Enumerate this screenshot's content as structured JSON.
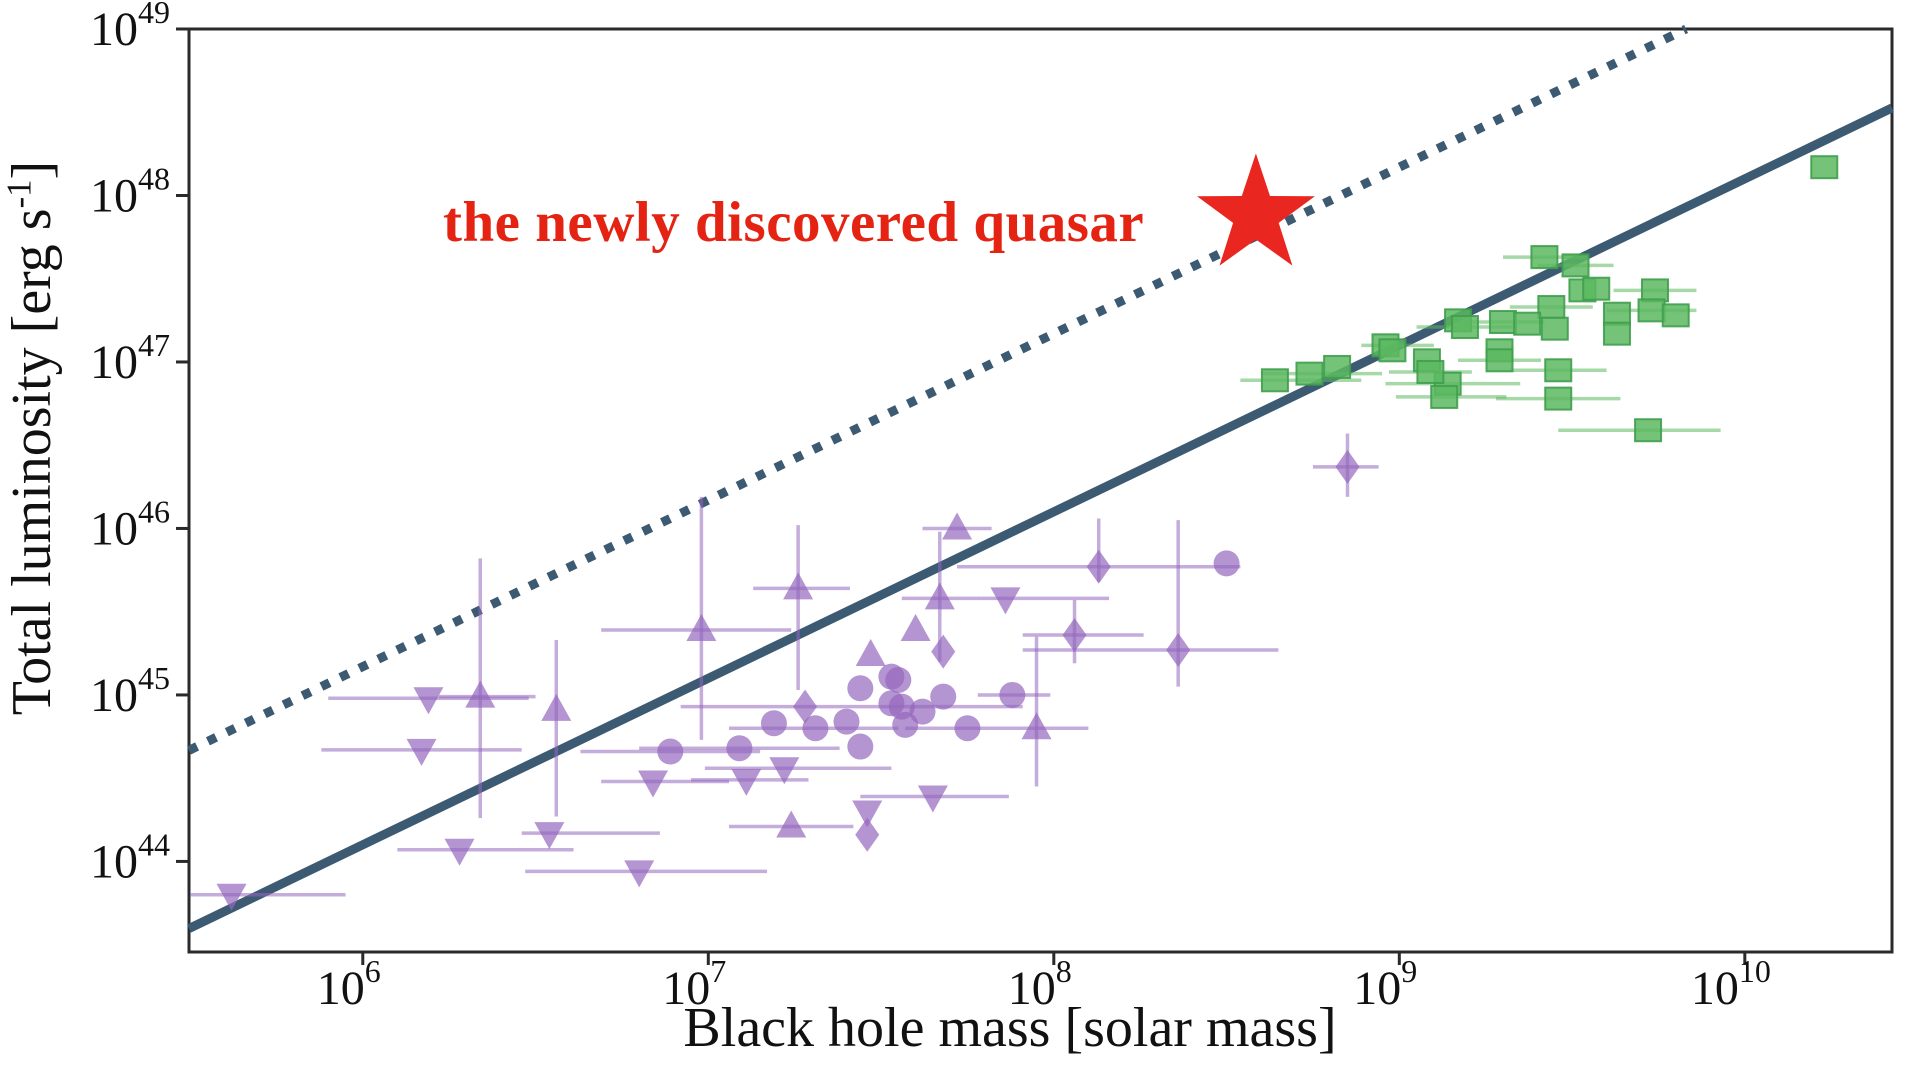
{
  "chart_data": {
    "type": "scatter",
    "title": "",
    "xlabel": "Black hole mass [solar mass]",
    "ylabel_pre": "Total luminosity [erg s",
    "ylabel_sup": "-1",
    "ylabel_post": "]",
    "annotation_text": "the newly discovered quasar",
    "x_axis": {
      "scale": "log",
      "range_exp": [
        5.497,
        10.426
      ],
      "tick_exponents": [
        6,
        7,
        8,
        9,
        10
      ],
      "tick_base": "10"
    },
    "y_axis": {
      "scale": "log",
      "range_exp": [
        43.456,
        49.0
      ],
      "tick_exponents": [
        49,
        48,
        47,
        46,
        45,
        44
      ],
      "tick_base": "10"
    },
    "grid": false,
    "legend": "none",
    "colors": {
      "purple_series": "#9467bd",
      "green_series": "#5cb860",
      "green_edge": "#3f9e4d",
      "line": "#3d5a73",
      "star": "#e9261f",
      "annotation": "#e42313",
      "axis": "#2a2a2a"
    },
    "lines": [
      {
        "name": "upper-dotted-relation",
        "style": "dotted",
        "slope": 1,
        "intercept": 39.17
      },
      {
        "name": "lower-solid-relation",
        "style": "solid",
        "slope": 1,
        "intercept": 38.1
      }
    ],
    "star_point": {
      "name": "newly-discovered-quasar",
      "logM": 8.585,
      "logL": 47.88
    },
    "series": [
      {
        "name": "agn-purple",
        "color": "#9467bd",
        "points": [
          {
            "m": 5.62,
            "l": 43.8,
            "mk": "triangle-down",
            "xe": [
              5.5,
              5.95
            ]
          },
          {
            "m": 6.19,
            "l": 44.98,
            "mk": "triangle-down",
            "xe": [
              5.9,
              6.48
            ]
          },
          {
            "m": 6.17,
            "l": 44.67,
            "mk": "triangle-down",
            "xe": [
              5.88,
              6.46
            ]
          },
          {
            "m": 6.34,
            "l": 44.99,
            "mk": "triangle-up",
            "xe": [
              6.22,
              6.5
            ],
            "ye": [
              44.26,
              45.82
            ]
          },
          {
            "m": 6.54,
            "l": 44.17,
            "mk": "triangle-down",
            "xe": [
              6.46,
              6.86
            ]
          },
          {
            "m": 6.28,
            "l": 44.07,
            "mk": "triangle-down",
            "xe": [
              6.1,
              6.61
            ]
          },
          {
            "m": 6.8,
            "l": 43.94,
            "mk": "triangle-down",
            "xe": [
              6.47,
              7.17
            ]
          },
          {
            "m": 6.56,
            "l": 44.91,
            "mk": "triangle-up",
            "ye": [
              44.27,
              45.33
            ]
          },
          {
            "m": 6.98,
            "l": 45.39,
            "mk": "triangle-up",
            "xe": [
              6.69,
              7.24
            ],
            "ye": [
              44.73,
              46.19
            ]
          },
          {
            "m": 7.26,
            "l": 45.64,
            "mk": "triangle-up",
            "xe": [
              7.13,
              7.41
            ],
            "ye": [
              45.03,
              46.02
            ]
          },
          {
            "m": 7.22,
            "l": 44.56,
            "mk": "triangle-down",
            "xe": [
              6.99,
              7.53
            ]
          },
          {
            "m": 6.84,
            "l": 44.48,
            "mk": "triangle-down",
            "xe": [
              6.69,
              7.06
            ]
          },
          {
            "m": 7.11,
            "l": 44.49,
            "mk": "triangle-down",
            "xe": [
              6.95,
              7.29
            ]
          },
          {
            "m": 6.89,
            "l": 44.66,
            "mk": "circle",
            "xe": [
              6.63,
              7.15
            ]
          },
          {
            "m": 7.09,
            "l": 44.68,
            "mk": "circle",
            "xe": [
              6.8,
              7.38
            ]
          },
          {
            "m": 7.19,
            "l": 44.83,
            "mk": "circle"
          },
          {
            "m": 7.31,
            "l": 44.8,
            "mk": "circle",
            "xe": [
              7.06,
              7.55
            ]
          },
          {
            "m": 7.4,
            "l": 44.84,
            "mk": "circle"
          },
          {
            "m": 7.44,
            "l": 44.69,
            "mk": "circle"
          },
          {
            "m": 7.53,
            "l": 44.95,
            "mk": "circle"
          },
          {
            "m": 7.56,
            "l": 44.93,
            "mk": "circle"
          },
          {
            "m": 7.62,
            "l": 44.9,
            "mk": "circle"
          },
          {
            "m": 7.57,
            "l": 44.82,
            "mk": "circle"
          },
          {
            "m": 7.53,
            "l": 45.11,
            "mk": "circle"
          },
          {
            "m": 7.68,
            "l": 44.99,
            "mk": "circle"
          },
          {
            "m": 7.88,
            "l": 45.0,
            "mk": "circle",
            "xe": [
              7.78,
              7.99
            ]
          },
          {
            "m": 7.75,
            "l": 44.8,
            "mk": "circle",
            "xe": [
              7.57,
              8.1
            ]
          },
          {
            "m": 7.44,
            "l": 45.04,
            "mk": "circle"
          },
          {
            "m": 7.55,
            "l": 45.09,
            "mk": "circle"
          },
          {
            "m": 7.72,
            "l": 46.0,
            "mk": "triangle-up",
            "xe": [
              7.62,
              7.82
            ]
          },
          {
            "m": 7.67,
            "l": 45.58,
            "mk": "triangle-up",
            "xe": [
              7.56,
              7.79
            ],
            "ye": [
              45.2,
              45.98
            ]
          },
          {
            "m": 7.86,
            "l": 45.58,
            "mk": "triangle-down",
            "xe": [
              7.79,
              8.16
            ]
          },
          {
            "m": 7.6,
            "l": 45.39,
            "mk": "triangle-up"
          },
          {
            "m": 7.68,
            "l": 45.26,
            "mk": "diamond"
          },
          {
            "m": 7.28,
            "l": 44.93,
            "mk": "diamond",
            "xe": [
              6.92,
              7.91
            ]
          },
          {
            "m": 8.06,
            "l": 45.36,
            "mk": "diamond",
            "xe": [
              7.91,
              8.26
            ],
            "ye": [
              45.19,
              45.57
            ]
          },
          {
            "m": 8.13,
            "l": 45.77,
            "mk": "diamond",
            "xe": [
              7.72,
              8.54
            ],
            "ye": [
              45.68,
              46.06
            ]
          },
          {
            "m": 8.5,
            "l": 45.79,
            "mk": "circle"
          },
          {
            "m": 8.36,
            "l": 45.27,
            "mk": "diamond",
            "xe": [
              7.91,
              8.65
            ],
            "ye": [
              45.05,
              46.05
            ]
          },
          {
            "m": 7.95,
            "l": 44.8,
            "mk": "triangle-up",
            "ye": [
              44.45,
              45.35
            ]
          },
          {
            "m": 7.65,
            "l": 44.39,
            "mk": "triangle-down",
            "xe": [
              7.44,
              7.87
            ]
          },
          {
            "m": 7.24,
            "l": 44.21,
            "mk": "triangle-up",
            "xe": [
              7.06,
              7.42
            ]
          },
          {
            "m": 7.46,
            "l": 44.3,
            "mk": "triangle-down"
          },
          {
            "m": 7.46,
            "l": 44.16,
            "mk": "diamond"
          },
          {
            "m": 7.47,
            "l": 45.24,
            "mk": "triangle-up"
          },
          {
            "m": 8.85,
            "l": 46.37,
            "mk": "diamond",
            "xe": [
              8.75,
              8.94
            ],
            "ye": [
              46.19,
              46.57
            ]
          }
        ]
      },
      {
        "name": "quasars-green",
        "color": "#5cb860",
        "points": [
          {
            "m": 8.64,
            "l": 46.89,
            "mk": "square",
            "xe": [
              8.54,
              8.89
            ]
          },
          {
            "m": 8.74,
            "l": 46.93,
            "mk": "square",
            "xe": [
              8.6,
              8.95
            ]
          },
          {
            "m": 8.82,
            "l": 46.97,
            "mk": "square"
          },
          {
            "m": 8.96,
            "l": 47.1,
            "mk": "square",
            "xe": [
              8.89,
              9.1
            ]
          },
          {
            "m": 8.98,
            "l": 47.07,
            "mk": "square"
          },
          {
            "m": 9.08,
            "l": 47.01,
            "mk": "square"
          },
          {
            "m": 9.14,
            "l": 46.87,
            "mk": "square",
            "xe": [
              8.96,
              9.35
            ]
          },
          {
            "m": 9.17,
            "l": 47.25,
            "mk": "square"
          },
          {
            "m": 9.42,
            "l": 47.63,
            "mk": "square",
            "xe": [
              9.3,
              9.55
            ]
          },
          {
            "m": 9.51,
            "l": 47.58,
            "mk": "square",
            "xe": [
              9.4,
              9.62
            ]
          },
          {
            "m": 9.53,
            "l": 47.43,
            "mk": "square"
          },
          {
            "m": 9.57,
            "l": 47.44,
            "mk": "square"
          },
          {
            "m": 9.74,
            "l": 47.43,
            "mk": "square",
            "xe": [
              9.62,
              9.86
            ]
          },
          {
            "m": 9.44,
            "l": 47.33,
            "mk": "square",
            "xe": [
              9.32,
              9.56
            ]
          },
          {
            "m": 9.73,
            "l": 47.31,
            "mk": "square",
            "xe": [
              9.6,
              9.86
            ]
          },
          {
            "m": 9.8,
            "l": 47.28,
            "mk": "square"
          },
          {
            "m": 9.63,
            "l": 47.29,
            "mk": "square"
          },
          {
            "m": 9.3,
            "l": 47.24,
            "mk": "square",
            "xe": [
              9.18,
              9.42
            ]
          },
          {
            "m": 9.37,
            "l": 47.23,
            "mk": "square"
          },
          {
            "m": 9.19,
            "l": 47.21,
            "mk": "square",
            "xe": [
              9.05,
              9.33
            ]
          },
          {
            "m": 9.45,
            "l": 47.2,
            "mk": "square"
          },
          {
            "m": 9.63,
            "l": 47.17,
            "mk": "square"
          },
          {
            "m": 9.29,
            "l": 47.07,
            "mk": "square"
          },
          {
            "m": 9.29,
            "l": 47.01,
            "mk": "square",
            "xe": [
              9.17,
              9.41
            ]
          },
          {
            "m": 9.09,
            "l": 46.94,
            "mk": "square",
            "xe": [
              8.97,
              9.21
            ]
          },
          {
            "m": 9.46,
            "l": 46.95,
            "mk": "square",
            "xe": [
              9.32,
              9.6
            ]
          },
          {
            "m": 9.13,
            "l": 46.79,
            "mk": "square",
            "xe": [
              8.99,
              9.31
            ]
          },
          {
            "m": 9.46,
            "l": 46.78,
            "mk": "square",
            "xe": [
              9.28,
              9.64
            ]
          },
          {
            "m": 9.72,
            "l": 46.59,
            "mk": "square",
            "xe": [
              9.46,
              9.93
            ]
          },
          {
            "m": 10.23,
            "l": 48.17,
            "mk": "square"
          }
        ]
      }
    ]
  }
}
